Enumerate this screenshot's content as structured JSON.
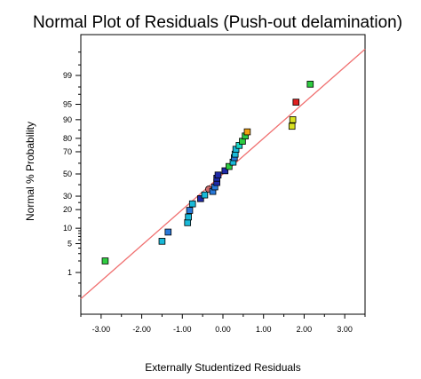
{
  "chart_data": {
    "type": "scatter",
    "title": "Normal Plot of Residuals (Push-out delamination)",
    "xlabel": "Externally Studentized Residuals",
    "ylabel": "Normal % Probability",
    "xlim": [
      -3.5,
      3.5
    ],
    "x_ticks": [
      -3.0,
      -2.0,
      -1.0,
      0.0,
      1.0,
      2.0,
      3.0
    ],
    "x_tick_labels": [
      "-3.00",
      "-2.00",
      "-1.00",
      "0.00",
      "1.00",
      "2.00",
      "3.00"
    ],
    "y_scale": "normal-probability",
    "y_ticks": [
      1,
      5,
      10,
      20,
      30,
      50,
      70,
      80,
      90,
      95,
      99
    ],
    "y_tick_labels": [
      "1",
      "5",
      "10",
      "20",
      "30",
      "50",
      "70",
      "80",
      "90",
      "95",
      "99"
    ],
    "grid": false,
    "reference_line": {
      "color": "#f07070",
      "points": [
        [
          -3.5,
          0.16
        ],
        [
          3.5,
          99.84
        ]
      ]
    },
    "points": [
      {
        "x": -2.9,
        "y": 2.0,
        "color": "#2ecc40"
      },
      {
        "x": -1.5,
        "y": 5.6,
        "color": "#19b9d8"
      },
      {
        "x": -1.35,
        "y": 8.5,
        "color": "#2878d8"
      },
      {
        "x": -0.87,
        "y": 12.5,
        "color": "#19b9d8"
      },
      {
        "x": -0.85,
        "y": 15.5,
        "color": "#19b9d8"
      },
      {
        "x": -0.82,
        "y": 19.5,
        "color": "#2878d8"
      },
      {
        "x": -0.75,
        "y": 24.0,
        "color": "#19b9d8"
      },
      {
        "x": -0.55,
        "y": 28.0,
        "color": "#1f2aa8"
      },
      {
        "x": -0.45,
        "y": 31.0,
        "color": "#19b9d8"
      },
      {
        "x": -0.35,
        "y": 36.0,
        "color": "#d06a6a",
        "shape": "circle"
      },
      {
        "x": -0.25,
        "y": 34.0,
        "color": "#2878d8"
      },
      {
        "x": -0.2,
        "y": 38.0,
        "color": "#2878d8"
      },
      {
        "x": -0.15,
        "y": 42.0,
        "color": "#1f2aa8"
      },
      {
        "x": -0.15,
        "y": 46.0,
        "color": "#1f2aa8"
      },
      {
        "x": -0.12,
        "y": 49.0,
        "color": "#1f2aa8"
      },
      {
        "x": 0.05,
        "y": 53.0,
        "color": "#1f2aa8"
      },
      {
        "x": 0.15,
        "y": 57.0,
        "color": "#2ecc40"
      },
      {
        "x": 0.25,
        "y": 61.0,
        "color": "#19b9d8"
      },
      {
        "x": 0.28,
        "y": 65.0,
        "color": "#2878d8"
      },
      {
        "x": 0.3,
        "y": 68.0,
        "color": "#19b9d8"
      },
      {
        "x": 0.32,
        "y": 72.0,
        "color": "#19b9d8"
      },
      {
        "x": 0.4,
        "y": 75.0,
        "color": "#19d8c8"
      },
      {
        "x": 0.48,
        "y": 78.0,
        "color": "#2ecc40"
      },
      {
        "x": 0.55,
        "y": 81.5,
        "color": "#2ecc40"
      },
      {
        "x": 0.6,
        "y": 84.0,
        "color": "#f0a010"
      },
      {
        "x": 1.7,
        "y": 87.0,
        "color": "#d8e020"
      },
      {
        "x": 1.72,
        "y": 90.0,
        "color": "#d8e020"
      },
      {
        "x": 1.8,
        "y": 95.5,
        "color": "#e02020"
      },
      {
        "x": 2.15,
        "y": 98.3,
        "color": "#2ecc40"
      }
    ]
  }
}
